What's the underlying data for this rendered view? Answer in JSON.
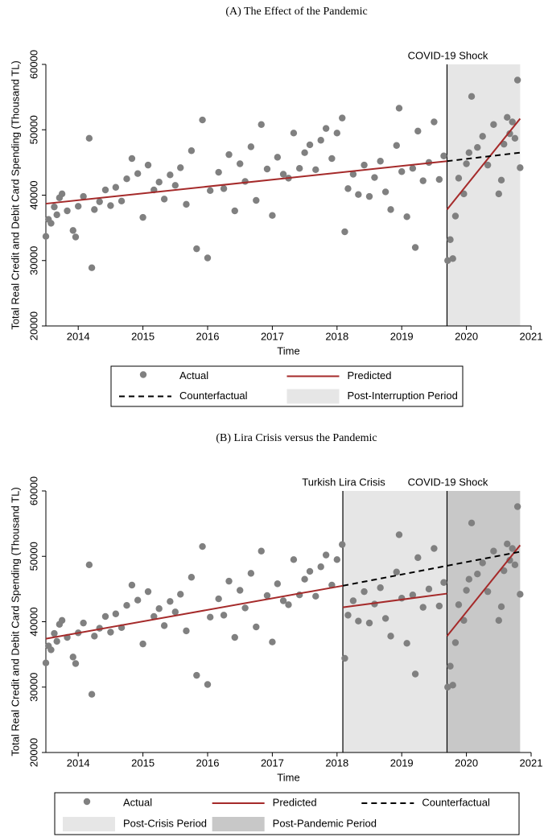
{
  "chart_data": [
    {
      "type": "scatter",
      "title": "(A) The Effect of the Pandemic",
      "xlabel": "Time",
      "ylabel": "Total Real Credit and Debit Card Spending (Thousand TL)",
      "xlim": [
        2014,
        2021.5
      ],
      "ylim": [
        20000,
        60000
      ],
      "xticks": [
        {
          "value": 2014.5,
          "label": "2014"
        },
        {
          "value": 2015.5,
          "label": "2015"
        },
        {
          "value": 2016.5,
          "label": "2016"
        },
        {
          "value": 2017.5,
          "label": "2017"
        },
        {
          "value": 2018.5,
          "label": "2018"
        },
        {
          "value": 2019.5,
          "label": "2019"
        },
        {
          "value": 2020.5,
          "label": "2020"
        },
        {
          "value": 2021.5,
          "label": "2021"
        }
      ],
      "yticks": [
        20000,
        30000,
        40000,
        50000,
        60000
      ],
      "x": [
        2014.0,
        2014.04,
        2014.08,
        2014.13,
        2014.17,
        2014.21,
        2014.25,
        2014.33,
        2014.42,
        2014.46,
        2014.5,
        2014.58,
        2014.67,
        2014.71,
        2014.75,
        2014.83,
        2014.92,
        2015.0,
        2015.08,
        2015.17,
        2015.25,
        2015.33,
        2015.42,
        2015.5,
        2015.58,
        2015.67,
        2015.75,
        2015.83,
        2015.92,
        2016.0,
        2016.08,
        2016.17,
        2016.25,
        2016.33,
        2016.42,
        2016.5,
        2016.54,
        2016.67,
        2016.75,
        2016.83,
        2016.92,
        2017.0,
        2017.08,
        2017.17,
        2017.25,
        2017.33,
        2017.42,
        2017.5,
        2017.58,
        2017.67,
        2017.75,
        2017.83,
        2017.92,
        2018.0,
        2018.08,
        2018.17,
        2018.25,
        2018.33,
        2018.42,
        2018.5,
        2018.58,
        2018.62,
        2018.67,
        2018.75,
        2018.83,
        2018.92,
        2019.0,
        2019.08,
        2019.17,
        2019.25,
        2019.33,
        2019.42,
        2019.46,
        2019.5,
        2019.58,
        2019.67,
        2019.71,
        2019.75,
        2019.83,
        2019.92,
        2020.0,
        2020.08,
        2020.15,
        2020.21,
        2020.25,
        2020.29,
        2020.33,
        2020.38,
        2020.46,
        2020.5,
        2020.54,
        2020.58,
        2020.67,
        2020.75,
        2020.83,
        2020.92,
        2021.0,
        2021.04,
        2021.08,
        2021.13,
        2021.17,
        2021.21,
        2021.25,
        2021.29,
        2021.33
      ],
      "series": [
        {
          "name": "Actual",
          "color": "#808080",
          "style": "markers",
          "values": [
            33700,
            36300,
            35700,
            38200,
            37000,
            39600,
            40200,
            37600,
            34600,
            33600,
            38300,
            39800,
            48700,
            28900,
            37800,
            39000,
            40800,
            38400,
            41200,
            39100,
            42500,
            45600,
            43300,
            36600,
            44600,
            40800,
            42000,
            39400,
            43100,
            41500,
            44200,
            38600,
            46800,
            31800,
            51500,
            30400,
            40700,
            43500,
            41000,
            46200,
            37600,
            44800,
            42100,
            47400,
            39200,
            50800,
            44000,
            36900,
            45800,
            43200,
            42600,
            49500,
            44100,
            46500,
            47700,
            43900,
            48400,
            50200,
            45600,
            49500,
            51800,
            34400,
            41000,
            43200,
            40100,
            44600,
            39800,
            42700,
            45200,
            40500,
            37800,
            47600,
            53300,
            43600,
            36700,
            44100,
            32000,
            49800,
            42200,
            45000,
            51200,
            42400,
            46000,
            30000,
            33200,
            30300,
            36800,
            42600,
            40200,
            44800,
            46500,
            55100,
            47300,
            49000,
            44600,
            50800,
            40200,
            42300,
            47800,
            51900,
            49400,
            51200,
            48700,
            57600,
            44200
          ]
        },
        {
          "name": "Predicted",
          "color": "#a52a2a",
          "style": "solid",
          "x": [
            2014,
            2020.2,
            2020.2,
            2020.2,
            2021.33
          ],
          "values": [
            38700,
            45200,
            null,
            37800,
            51700
          ]
        },
        {
          "name": "Counterfactual",
          "color": "#000000",
          "style": "dashed",
          "x": [
            2020.2,
            2021.33
          ],
          "values": [
            45200,
            46500
          ]
        }
      ],
      "regions": [
        {
          "name": "Post-Interruption Period",
          "color": "#e6e6e6",
          "start": 2020.2,
          "end": 2021.33
        }
      ],
      "annotations": [
        {
          "label": "COVID-19 Shock",
          "x": 2020.2
        }
      ]
    },
    {
      "type": "scatter",
      "title": "(B) Lira Crisis versus the Pandemic",
      "xlabel": "Time",
      "ylabel": "Total Real Credit and Debit Card Spending (Thousand TL)",
      "xlim": [
        2014,
        2021.5
      ],
      "ylim": [
        20000,
        60000
      ],
      "xticks": [
        {
          "value": 2014.5,
          "label": "2014"
        },
        {
          "value": 2015.5,
          "label": "2015"
        },
        {
          "value": 2016.5,
          "label": "2016"
        },
        {
          "value": 2017.5,
          "label": "2017"
        },
        {
          "value": 2018.5,
          "label": "2018"
        },
        {
          "value": 2019.5,
          "label": "2019"
        },
        {
          "value": 2020.5,
          "label": "2020"
        },
        {
          "value": 2021.5,
          "label": "2021"
        }
      ],
      "yticks": [
        20000,
        30000,
        40000,
        50000,
        60000
      ],
      "x": [
        2014.0,
        2014.04,
        2014.08,
        2014.13,
        2014.17,
        2014.21,
        2014.25,
        2014.33,
        2014.42,
        2014.46,
        2014.5,
        2014.58,
        2014.67,
        2014.71,
        2014.75,
        2014.83,
        2014.92,
        2015.0,
        2015.08,
        2015.17,
        2015.25,
        2015.33,
        2015.42,
        2015.5,
        2015.58,
        2015.67,
        2015.75,
        2015.83,
        2015.92,
        2016.0,
        2016.08,
        2016.17,
        2016.25,
        2016.33,
        2016.42,
        2016.5,
        2016.54,
        2016.67,
        2016.75,
        2016.83,
        2016.92,
        2017.0,
        2017.08,
        2017.17,
        2017.25,
        2017.33,
        2017.42,
        2017.5,
        2017.58,
        2017.67,
        2017.75,
        2017.83,
        2017.92,
        2018.0,
        2018.08,
        2018.17,
        2018.25,
        2018.33,
        2018.42,
        2018.5,
        2018.58,
        2018.62,
        2018.67,
        2018.75,
        2018.83,
        2018.92,
        2019.0,
        2019.08,
        2019.17,
        2019.25,
        2019.33,
        2019.42,
        2019.46,
        2019.5,
        2019.58,
        2019.67,
        2019.71,
        2019.75,
        2019.83,
        2019.92,
        2020.0,
        2020.08,
        2020.15,
        2020.21,
        2020.25,
        2020.29,
        2020.33,
        2020.38,
        2020.46,
        2020.5,
        2020.54,
        2020.58,
        2020.67,
        2020.75,
        2020.83,
        2020.92,
        2021.0,
        2021.04,
        2021.08,
        2021.13,
        2021.17,
        2021.21,
        2021.25,
        2021.29,
        2021.33
      ],
      "series": [
        {
          "name": "Actual",
          "color": "#808080",
          "style": "markers",
          "values": [
            33700,
            36300,
            35700,
            38200,
            37000,
            39600,
            40200,
            37600,
            34600,
            33600,
            38300,
            39800,
            48700,
            28900,
            37800,
            39000,
            40800,
            38400,
            41200,
            39100,
            42500,
            45600,
            43300,
            36600,
            44600,
            40800,
            42000,
            39400,
            43100,
            41500,
            44200,
            38600,
            46800,
            31800,
            51500,
            30400,
            40700,
            43500,
            41000,
            46200,
            37600,
            44800,
            42100,
            47400,
            39200,
            50800,
            44000,
            36900,
            45800,
            43200,
            42600,
            49500,
            44100,
            46500,
            47700,
            43900,
            48400,
            50200,
            45600,
            49500,
            51800,
            34400,
            41000,
            43200,
            40100,
            44600,
            39800,
            42700,
            45200,
            40500,
            37800,
            47600,
            53300,
            43600,
            36700,
            44100,
            32000,
            49800,
            42200,
            45000,
            51200,
            42400,
            46000,
            30000,
            33200,
            30300,
            36800,
            42600,
            40200,
            44800,
            46500,
            55100,
            47300,
            49000,
            44600,
            50800,
            40200,
            42300,
            47800,
            51900,
            49400,
            51200,
            48700,
            57600,
            44200
          ]
        },
        {
          "name": "Predicted",
          "color": "#a52a2a",
          "style": "solid",
          "x": [
            2014,
            2018.59,
            2018.59,
            2018.59,
            2020.2,
            2020.2,
            2020.2,
            2021.33
          ],
          "values": [
            37400,
            45500,
            null,
            42200,
            44300,
            null,
            37800,
            51700
          ]
        },
        {
          "name": "Counterfactual",
          "color": "#000000",
          "style": "dashed",
          "x": [
            2018.59,
            2021.33
          ],
          "values": [
            45500,
            50700
          ]
        }
      ],
      "regions": [
        {
          "name": "Post-Crisis Period",
          "color": "#e6e6e6",
          "start": 2018.59,
          "end": 2020.2
        },
        {
          "name": "Post-Pandemic Period",
          "color": "#c8c8c8",
          "start": 2020.2,
          "end": 2021.33
        }
      ],
      "annotations": [
        {
          "label": "Turkish Lira Crisis",
          "x": 2018.59
        },
        {
          "label": "COVID-19 Shock",
          "x": 2020.2
        }
      ]
    }
  ]
}
